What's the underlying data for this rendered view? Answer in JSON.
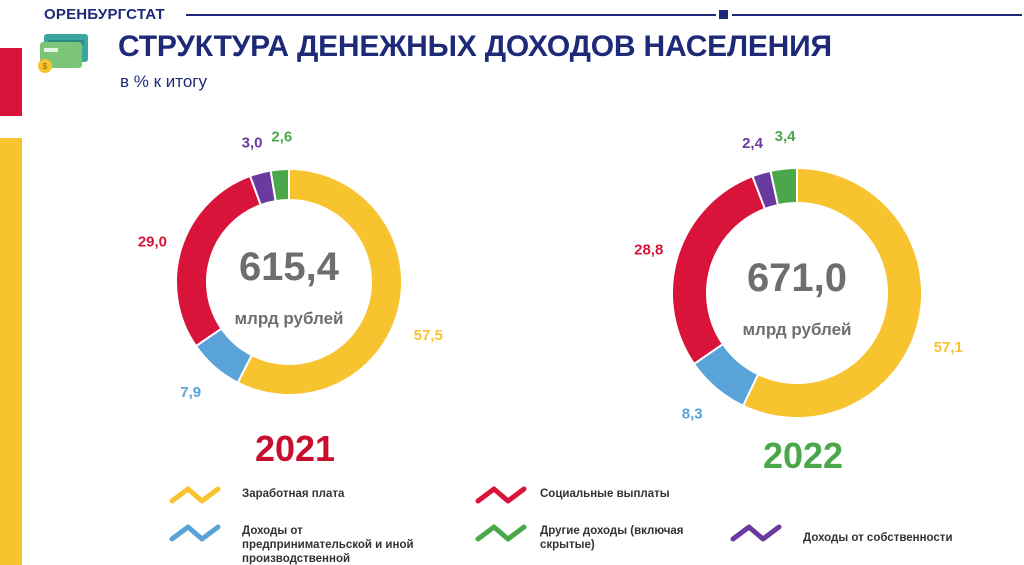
{
  "header": {
    "brand": "ОРЕНБУРГСТАТ",
    "title": "СТРУКТУРА ДЕНЕЖНЫХ ДОХОДОВ НАСЕЛЕНИЯ",
    "subtitle": "в % к итогу"
  },
  "colors": {
    "salary": "#f7c32e",
    "social": "#d8143a",
    "business": "#5aa3d8",
    "other": "#4aa84a",
    "property": "#6b3aa0",
    "brand": "#1e2a78"
  },
  "chart_data": [
    {
      "type": "pie",
      "year_label": "2021",
      "year_color": "#c8102e",
      "center_value": "615,4",
      "center_unit": "млрд  рублей",
      "categories": [
        "Заработная плата",
        "Доходы от предпринимательской и иной производственной деятельности",
        "Социальные выплаты",
        "Доходы от собственности",
        "Другие доходы (включая скрытые)"
      ],
      "values": [
        57.5,
        7.9,
        29.0,
        3.0,
        2.6
      ],
      "labels": [
        "57,5",
        "7,9",
        "29,0",
        "3,0",
        "2,6"
      ]
    },
    {
      "type": "pie",
      "year_label": "2022",
      "year_color": "#4aa84a",
      "center_value": "671,0",
      "center_unit": "млрд  рублей",
      "categories": [
        "Заработная плата",
        "Доходы от предпринимательской и иной производственной деятельности",
        "Социальные выплаты",
        "Доходы от собственности",
        "Другие доходы (включая скрытые)"
      ],
      "values": [
        57.1,
        8.3,
        28.8,
        2.4,
        3.4
      ],
      "labels": [
        "57,1",
        "8,3",
        "28,8",
        "2,4",
        "3,4"
      ]
    }
  ],
  "legend": [
    {
      "text": "Заработная плата",
      "color": "#f7c32e"
    },
    {
      "text": "Социальные выплаты",
      "color": "#d8143a"
    },
    {
      "text": "Доходы от предпринимательской и иной производственной деятельности",
      "color": "#5aa3d8"
    },
    {
      "text": "Другие доходы (включая скрытые)",
      "color": "#4aa84a"
    },
    {
      "text": "Доходы от собственности",
      "color": "#6b3aa0"
    }
  ]
}
